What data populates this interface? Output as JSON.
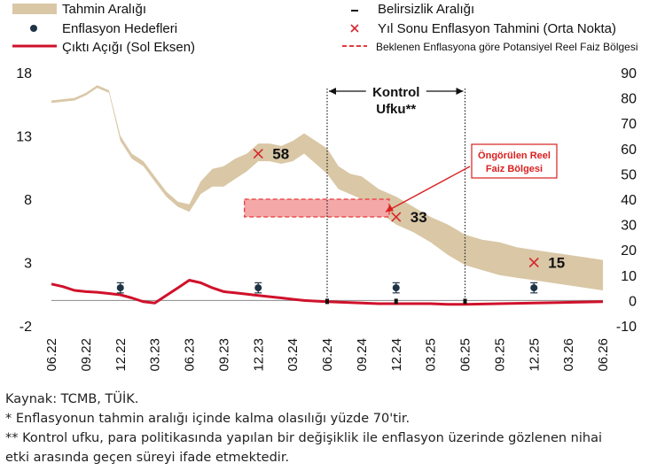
{
  "chart_data": {
    "type": "line",
    "x_labels": [
      "06.22",
      "09.22",
      "12.22",
      "03.23",
      "06.23",
      "09.23",
      "12.23",
      "03.24",
      "06.24",
      "09.24",
      "12.24",
      "03.25",
      "06.25",
      "09.25",
      "12.25",
      "03.26",
      "06.26"
    ],
    "y_left": {
      "ylim": [
        -2,
        18
      ],
      "ticks": [
        -2,
        3,
        8,
        13,
        18
      ]
    },
    "y_right": {
      "ylim": [
        -10,
        90
      ],
      "ticks": [
        -10,
        0,
        10,
        20,
        30,
        40,
        50,
        60,
        70,
        80,
        90
      ]
    },
    "legend": {
      "forecast_range": "Tahmin Aralığı",
      "uncertainty": "Belirsizlik Aralığı",
      "inflation_targets": "Enflasyon Hedefleri",
      "year_end_forecast": "Yıl Sonu Enflasyon Tahmini (Orta Nokta)",
      "output_gap": "Çıktı Açığı (Sol Eksen)",
      "expected_real_rate": "Beklenen Enflasyona göre Potansiyel Reel Faiz Bölgesi"
    },
    "series": [
      {
        "name": "Tahmin Aralığı",
        "axis": "right",
        "x": [
          0,
          0.67,
          1,
          1.33,
          1.67,
          2,
          2.33,
          2.67,
          3,
          3.33,
          3.67,
          4,
          4.33,
          4.67,
          5,
          5.33,
          5.67,
          6,
          6.33,
          6.67,
          7,
          7.33,
          7.67,
          8,
          8.33,
          8.67,
          9,
          9.5,
          10,
          10.5,
          11,
          11.5,
          12,
          12.5,
          13,
          13.5,
          14,
          14.5,
          15,
          15.5,
          16
        ],
        "upper": [
          79,
          80,
          82,
          85,
          83,
          65,
          58,
          55,
          49,
          43,
          39,
          38,
          47,
          52,
          53,
          56,
          58,
          62,
          62,
          61,
          63,
          66,
          63,
          60,
          53,
          50,
          49,
          44,
          41,
          37,
          33,
          30,
          26,
          24,
          23,
          21,
          20,
          19,
          18,
          17,
          16
        ],
        "lower": [
          78,
          79,
          81,
          84,
          82,
          63,
          56,
          53,
          47,
          41,
          37,
          35,
          42,
          45,
          45,
          48,
          51,
          55,
          55,
          54,
          55,
          58,
          54,
          50,
          44,
          42,
          40,
          35,
          30,
          27,
          23,
          18,
          14,
          12,
          10,
          9,
          8,
          7,
          6,
          5,
          4
        ]
      },
      {
        "name": "Çıktı Açığı (Sol Eksen)",
        "axis": "left",
        "x": [
          0,
          0.33,
          0.67,
          1,
          1.33,
          1.67,
          2,
          2.33,
          2.67,
          3,
          3.33,
          3.67,
          4,
          4.33,
          4.67,
          5,
          5.33,
          5.67,
          6,
          6.33,
          6.67,
          7,
          7.33,
          7.67,
          8,
          8.5,
          9,
          9.5,
          10,
          10.5,
          11,
          11.5,
          12,
          13,
          14,
          15,
          16
        ],
        "values": [
          1.3,
          1.1,
          0.8,
          0.7,
          0.65,
          0.55,
          0.45,
          0.2,
          -0.1,
          -0.2,
          0.4,
          1,
          1.6,
          1.4,
          1.0,
          0.7,
          0.6,
          0.5,
          0.4,
          0.3,
          0.2,
          0.1,
          0,
          -0.05,
          -0.1,
          -0.15,
          -0.2,
          -0.25,
          -0.25,
          -0.25,
          -0.25,
          -0.3,
          -0.3,
          -0.25,
          -0.2,
          -0.15,
          -0.1
        ]
      }
    ],
    "inflation_targets": {
      "x": [
        2,
        6,
        10,
        14
      ],
      "values": [
        5,
        5,
        5,
        5
      ],
      "err_low": [
        3,
        3,
        3,
        3
      ],
      "err_high": [
        7,
        7,
        7,
        7
      ],
      "axis": "right"
    },
    "year_end_forecasts": {
      "x": [
        6,
        10,
        14
      ],
      "values": [
        58,
        33,
        15
      ],
      "labels": [
        "58",
        "33",
        "15"
      ],
      "axis": "right"
    },
    "uncertainty_ticks": {
      "x": [
        8,
        10,
        12
      ]
    },
    "real_rate_zone": {
      "x_range": [
        5.6,
        9.8
      ],
      "y_range": [
        33,
        40
      ],
      "axis": "right"
    },
    "control_horizon": {
      "x_range": [
        8,
        12
      ],
      "label_line1": "Kontrol",
      "label_line2": "Ufku**"
    },
    "annotation": {
      "line1": "Öngörülen Reel",
      "line2": "Faiz Bölgesi",
      "arrow_to": [
        9.8,
        35
      ]
    }
  },
  "notes": {
    "source": "Kaynak: TCMB, TÜİK.",
    "note1": "* Enflasyonun tahmin aralığı içinde kalma olasılığı yüzde 70'tir.",
    "note2_line1": "** Kontrol ufku, para politikasında yapılan bir değişiklik ile enflasyon üzerinde gözlenen nihai",
    "note2_line2": "etki arasında geçen süreyi ifade etmektedir."
  },
  "colors": {
    "band": "#d9c7a6",
    "output_gap": "#d0112b",
    "target_dot": "#1f3346",
    "forecast_x": "#d6282f",
    "zone_fill": "#f4a8a8",
    "zone_stroke": "#e43a3a",
    "annotation": "#d9201f"
  }
}
